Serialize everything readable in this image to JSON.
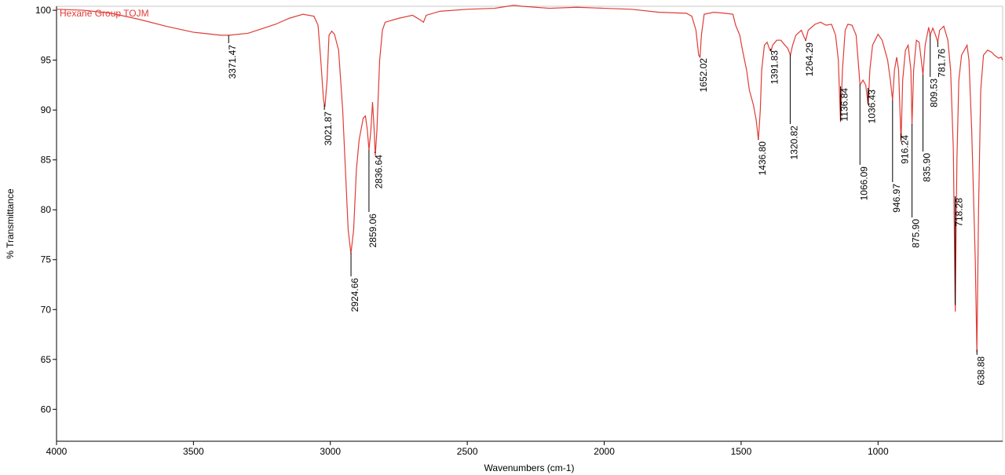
{
  "chart_data": {
    "type": "line",
    "title": "Hexane Group TOJM",
    "xlabel": "Wavenumbers (cm-1)",
    "ylabel": "% Transmittance",
    "xlim": [
      4000,
      545
    ],
    "ylim": [
      56.8,
      100.4
    ],
    "xticks": [
      4000,
      3500,
      3000,
      2500,
      2000,
      1500,
      1000
    ],
    "yticks": [
      60,
      65,
      70,
      75,
      80,
      85,
      90,
      95,
      100
    ],
    "series": [
      {
        "name": "Hexane Group TOJM",
        "color": "#e03c36",
        "x": [
          4000,
          3900,
          3800,
          3700,
          3600,
          3500,
          3400,
          3370,
          3300,
          3200,
          3150,
          3100,
          3060,
          3045,
          3035,
          3025,
          3020,
          3012,
          3005,
          2995,
          2985,
          2970,
          2955,
          2945,
          2935,
          2925,
          2915,
          2905,
          2895,
          2880,
          2872,
          2865,
          2859,
          2852,
          2846,
          2840,
          2836,
          2830,
          2820,
          2810,
          2800,
          2750,
          2700,
          2670,
          2660,
          2650,
          2600,
          2500,
          2400,
          2330,
          2300,
          2200,
          2100,
          2000,
          1900,
          1800,
          1700,
          1680,
          1665,
          1655,
          1650,
          1645,
          1635,
          1600,
          1560,
          1530,
          1520,
          1505,
          1495,
          1480,
          1470,
          1455,
          1445,
          1437,
          1430,
          1425,
          1415,
          1405,
          1395,
          1391,
          1385,
          1370,
          1355,
          1340,
          1330,
          1320,
          1312,
          1300,
          1280,
          1270,
          1264,
          1255,
          1230,
          1210,
          1190,
          1170,
          1155,
          1145,
          1137,
          1130,
          1120,
          1110,
          1095,
          1080,
          1070,
          1066,
          1055,
          1045,
          1036,
          1030,
          1020,
          1000,
          985,
          975,
          965,
          955,
          947,
          940,
          932,
          925,
          916,
          910,
          900,
          890,
          880,
          876,
          870,
          860,
          850,
          842,
          836,
          828,
          815,
          810,
          800,
          790,
          782,
          775,
          760,
          745,
          735,
          725,
          718,
          712,
          705,
          695,
          685,
          675,
          668,
          658,
          645,
          639,
          633,
          625,
          615,
          600,
          585,
          575,
          560,
          550,
          545
        ],
        "values": [
          100.1,
          100,
          99.7,
          99.1,
          98.4,
          97.8,
          97.5,
          97.5,
          97.7,
          98.6,
          99.2,
          99.6,
          99.4,
          98.5,
          95,
          91,
          90.3,
          93,
          97.5,
          97.9,
          97.6,
          96,
          90,
          84,
          78,
          75.6,
          78,
          84,
          87,
          89.2,
          89.4,
          88,
          86,
          88,
          90.8,
          88,
          85.4,
          88,
          95,
          98,
          98.8,
          99.2,
          99.5,
          99,
          98.8,
          99.5,
          99.9,
          100.1,
          100.2,
          100.5,
          100.4,
          100.2,
          100.3,
          100.2,
          100.1,
          99.8,
          99.7,
          99.4,
          98,
          95.5,
          95.3,
          97.5,
          99.6,
          99.8,
          99.7,
          99.6,
          98.5,
          97.5,
          96,
          94,
          92,
          90.5,
          89,
          87,
          90,
          94,
          96.5,
          96.8,
          96,
          95.9,
          96.5,
          97,
          97,
          96.5,
          96.2,
          95.5,
          96.5,
          97.5,
          98,
          97.3,
          97,
          98,
          98.6,
          98.8,
          98.5,
          98.6,
          97.5,
          95,
          88.8,
          94,
          98,
          98.6,
          98.5,
          97.5,
          94,
          92.5,
          93,
          92.5,
          90.5,
          94,
          96.5,
          97.6,
          97,
          96,
          95,
          93,
          91,
          94,
          95.3,
          94,
          86.8,
          93,
          96,
          96.5,
          94,
          88.5,
          94,
          97,
          96.8,
          95,
          93.5,
          96.5,
          98.3,
          97.5,
          98.2,
          97.5,
          96.8,
          98,
          98.4,
          97,
          94,
          86,
          69.8,
          85,
          93,
          95.5,
          96,
          96.5,
          95,
          88,
          75,
          65.7,
          80,
          92,
          95.5,
          96,
          95.8,
          95.5,
          95.2,
          95.3,
          95
        ]
      }
    ],
    "annotations": [
      {
        "x": 3371.47,
        "label": "3371.47"
      },
      {
        "x": 3021.87,
        "label": "3021.87"
      },
      {
        "x": 2924.66,
        "label": "2924.66"
      },
      {
        "x": 2859.06,
        "label": "2859.06"
      },
      {
        "x": 2836.64,
        "label": "2836.64"
      },
      {
        "x": 1652.02,
        "label": "1652.02"
      },
      {
        "x": 1436.8,
        "label": "1436.80"
      },
      {
        "x": 1391.83,
        "label": "1391.83"
      },
      {
        "x": 1320.82,
        "label": "1320.82"
      },
      {
        "x": 1264.29,
        "label": "1264.29"
      },
      {
        "x": 1136.84,
        "label": "1136.84"
      },
      {
        "x": 1066.09,
        "label": "1066.09"
      },
      {
        "x": 1036.43,
        "label": "1036.43"
      },
      {
        "x": 946.97,
        "label": "946.97"
      },
      {
        "x": 916.24,
        "label": "916.24"
      },
      {
        "x": 875.9,
        "label": "875.90"
      },
      {
        "x": 835.9,
        "label": "835.90"
      },
      {
        "x": 809.53,
        "label": "809.53"
      },
      {
        "x": 781.76,
        "label": "781.76"
      },
      {
        "x": 718.28,
        "label": "718.28"
      },
      {
        "x": 638.88,
        "label": "638.88"
      }
    ]
  }
}
